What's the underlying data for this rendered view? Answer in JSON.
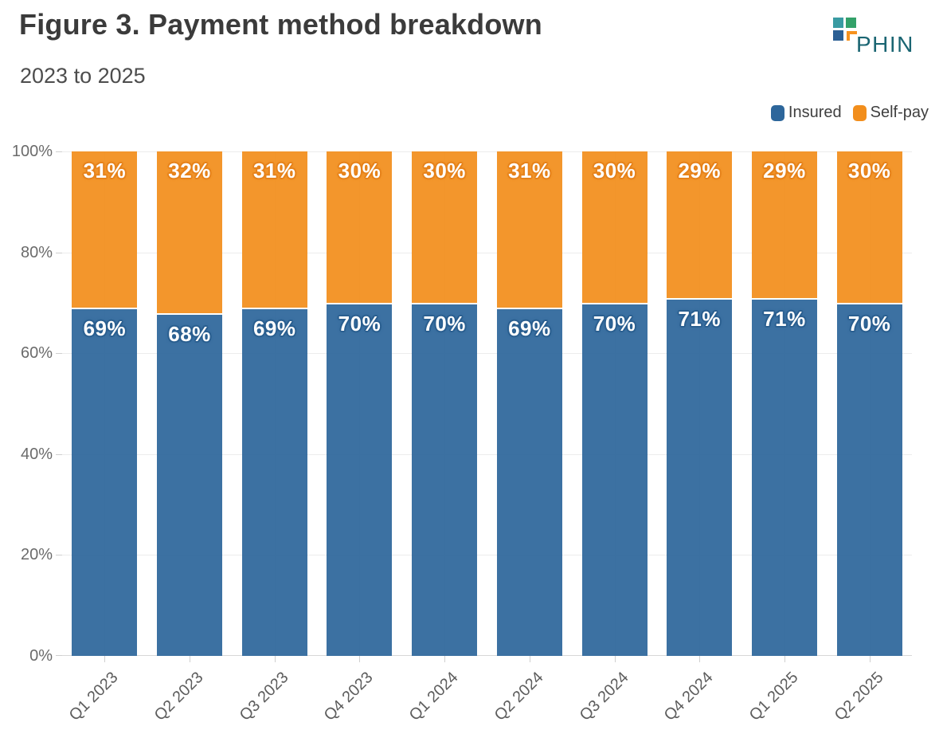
{
  "header": {
    "title": "Figure 3. Payment method breakdown",
    "subtitle": "2023 to 2025"
  },
  "logo": {
    "text": "PHIN",
    "colors": {
      "square_teal": "#3a9ba2",
      "square_green": "#33a169",
      "square_blue": "#2b5f94",
      "corner_orange": "#f6921e",
      "text": "#1a6572"
    }
  },
  "chart_data": {
    "type": "bar",
    "stacked": true,
    "percent": true,
    "title": "Figure 3. Payment method breakdown",
    "subtitle": "2023 to 2025",
    "categories": [
      "Q1 2023",
      "Q2 2023",
      "Q3 2023",
      "Q4 2023",
      "Q1 2024",
      "Q2 2024",
      "Q3 2024",
      "Q4 2024",
      "Q1 2025",
      "Q2 2025"
    ],
    "series": [
      {
        "name": "Insured",
        "color": "#2d669b",
        "fill": "rgba(45,102,155,0.93)",
        "label_outline": "#2a5f90",
        "values": [
          69,
          68,
          69,
          70,
          70,
          69,
          70,
          71,
          71,
          70
        ]
      },
      {
        "name": "Self-pay",
        "color": "#f28e1c",
        "fill": "rgba(242,142,28,0.93)",
        "label_outline": "#e6821a",
        "values": [
          31,
          32,
          31,
          30,
          30,
          31,
          30,
          29,
          29,
          30
        ]
      }
    ],
    "xlabel": "",
    "ylabel": "",
    "ylim": [
      0,
      100
    ],
    "yticks": [
      "0%",
      "20%",
      "40%",
      "60%",
      "80%",
      "100%"
    ],
    "value_suffix": "%",
    "grid": "horizontal",
    "legend_position": "top-right",
    "bar_labels": "inside-top"
  }
}
